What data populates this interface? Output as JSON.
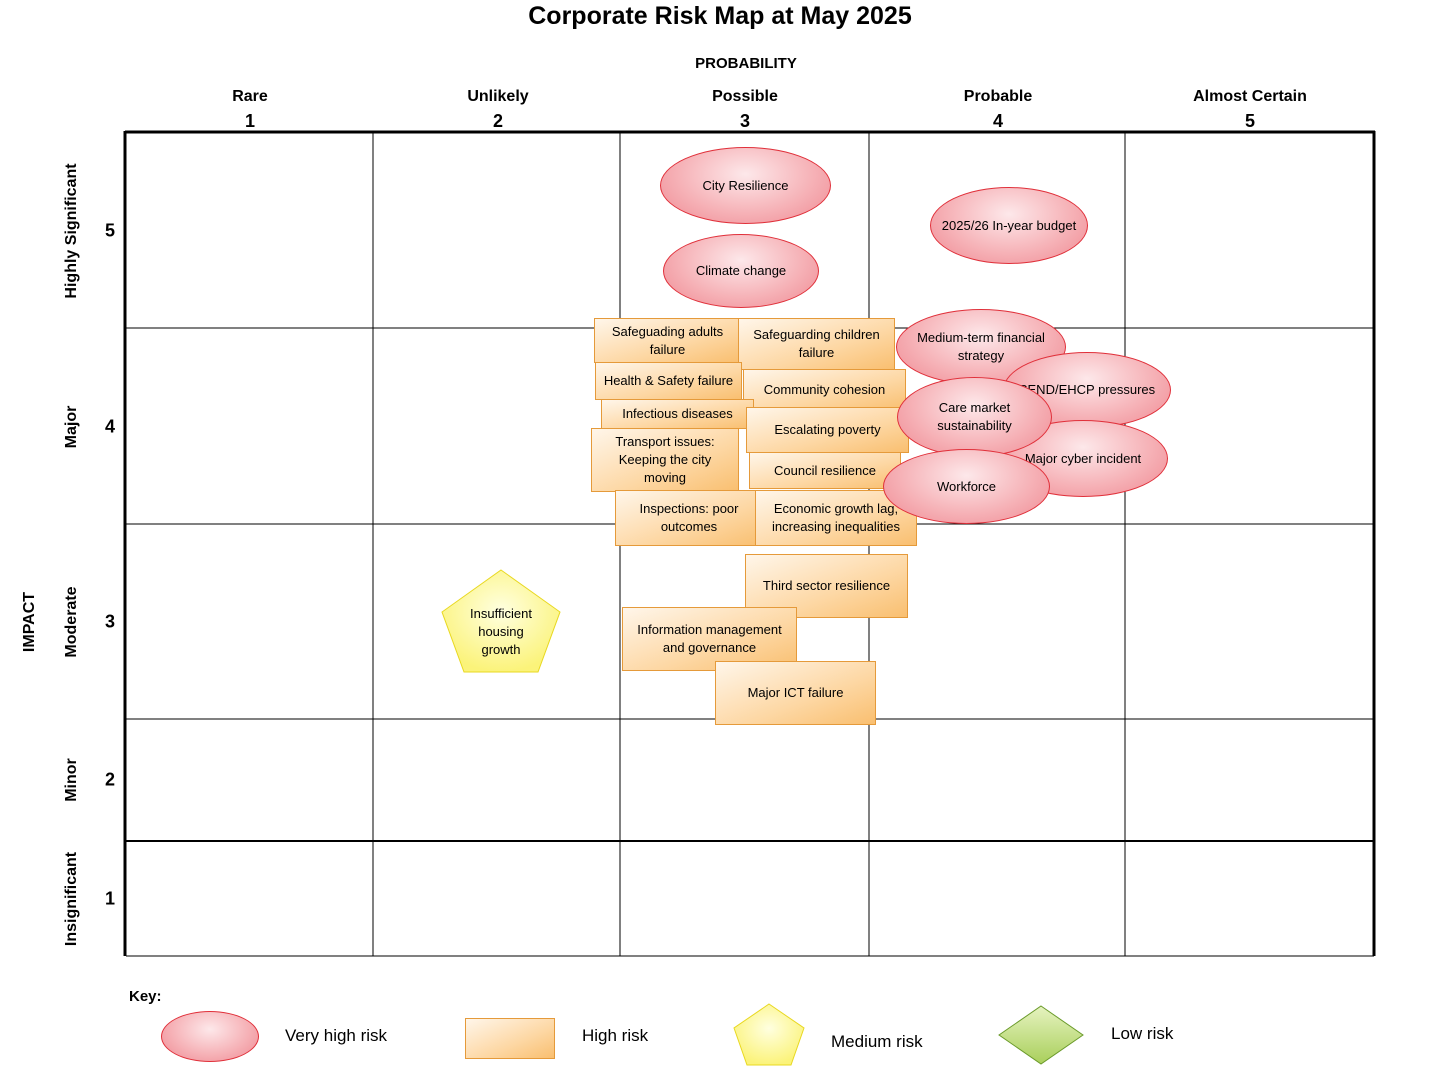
{
  "title": "Corporate Risk Map at May 2025",
  "x_axis_label": "PROBABILITY",
  "y_axis_label": "IMPACT",
  "probability_levels": [
    {
      "label": "Rare",
      "value": "1"
    },
    {
      "label": "Unlikely",
      "value": "2"
    },
    {
      "label": "Possible",
      "value": "3"
    },
    {
      "label": "Probable",
      "value": "4"
    },
    {
      "label": "Almost Certain",
      "value": "5"
    }
  ],
  "impact_levels": [
    {
      "label": "Highly Significant",
      "value": "5"
    },
    {
      "label": "Major",
      "value": "4"
    },
    {
      "label": "Moderate",
      "value": "3"
    },
    {
      "label": "Minor",
      "value": "2"
    },
    {
      "label": "Insignificant",
      "value": "1"
    }
  ],
  "risks": {
    "city_resilience": "City Resilience",
    "climate_change": "Climate change",
    "inyear_budget": "2025/26 In-year budget",
    "medium_term": "Medium-term financial strategy",
    "send_ehcp": "SEND/EHCP pressures",
    "care_market": "Care market sustainability",
    "cyber": "Major cyber incident",
    "workforce": "Workforce",
    "safeguarding_adults": "Safeguading adults failure",
    "safeguarding_children": "Safeguarding children failure",
    "health_safety": "Health & Safety failure",
    "community_cohesion": "Community cohesion",
    "infectious": "Infectious diseases",
    "poverty": "Escalating poverty",
    "transport": "Transport issues: Keeping the city moving",
    "council_resilience": "Council resilience",
    "inspections": "Inspections: poor outcomes",
    "economic_growth": "Economic growth lag, increasing inequalities",
    "third_sector": "Third sector resilience",
    "info_mgmt": "Information management and governance",
    "ict_failure": "Major ICT failure",
    "housing": "Insufficient housing growth"
  },
  "key": {
    "title": "Key:",
    "very_high": "Very high risk",
    "high": "High risk",
    "medium": "Medium risk",
    "low": "Low risk"
  },
  "colors": {
    "very_high_border": "#e0303a",
    "high_border": "#e59a3a",
    "medium_border": "#e8d820",
    "low_border": "#6a9a2a"
  }
}
